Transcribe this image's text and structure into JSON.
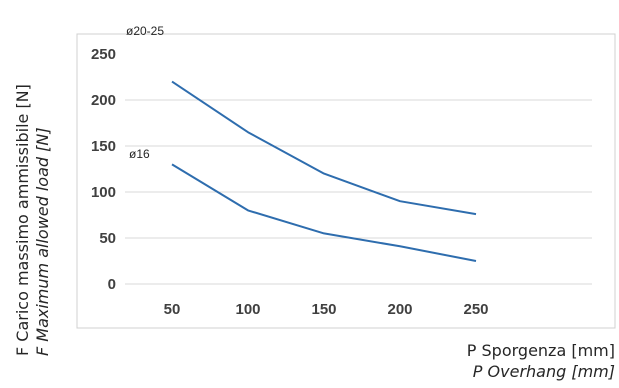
{
  "chart_data": {
    "type": "line",
    "categories": [
      50,
      100,
      150,
      200,
      250
    ],
    "series": [
      {
        "name": "ø20-25",
        "values": [
          220,
          165,
          120,
          90,
          76
        ]
      },
      {
        "name": "ø16",
        "values": [
          130,
          80,
          55,
          41,
          25
        ]
      }
    ],
    "y_ticks": [
      0,
      50,
      100,
      150,
      200,
      250
    ],
    "ylim": [
      0,
      250
    ],
    "ylabel": [
      "F Carico massimo ammissibile [N]",
      "F Maximum allowed load [N]"
    ],
    "xlabel": [
      "P Sporgenza [mm]",
      "P Overhang [mm]"
    ],
    "grid": true,
    "legend": "none",
    "line_color": "#2e6dae",
    "grid_color": "#d9d9d9",
    "frame_color": "#d0d0d0"
  }
}
